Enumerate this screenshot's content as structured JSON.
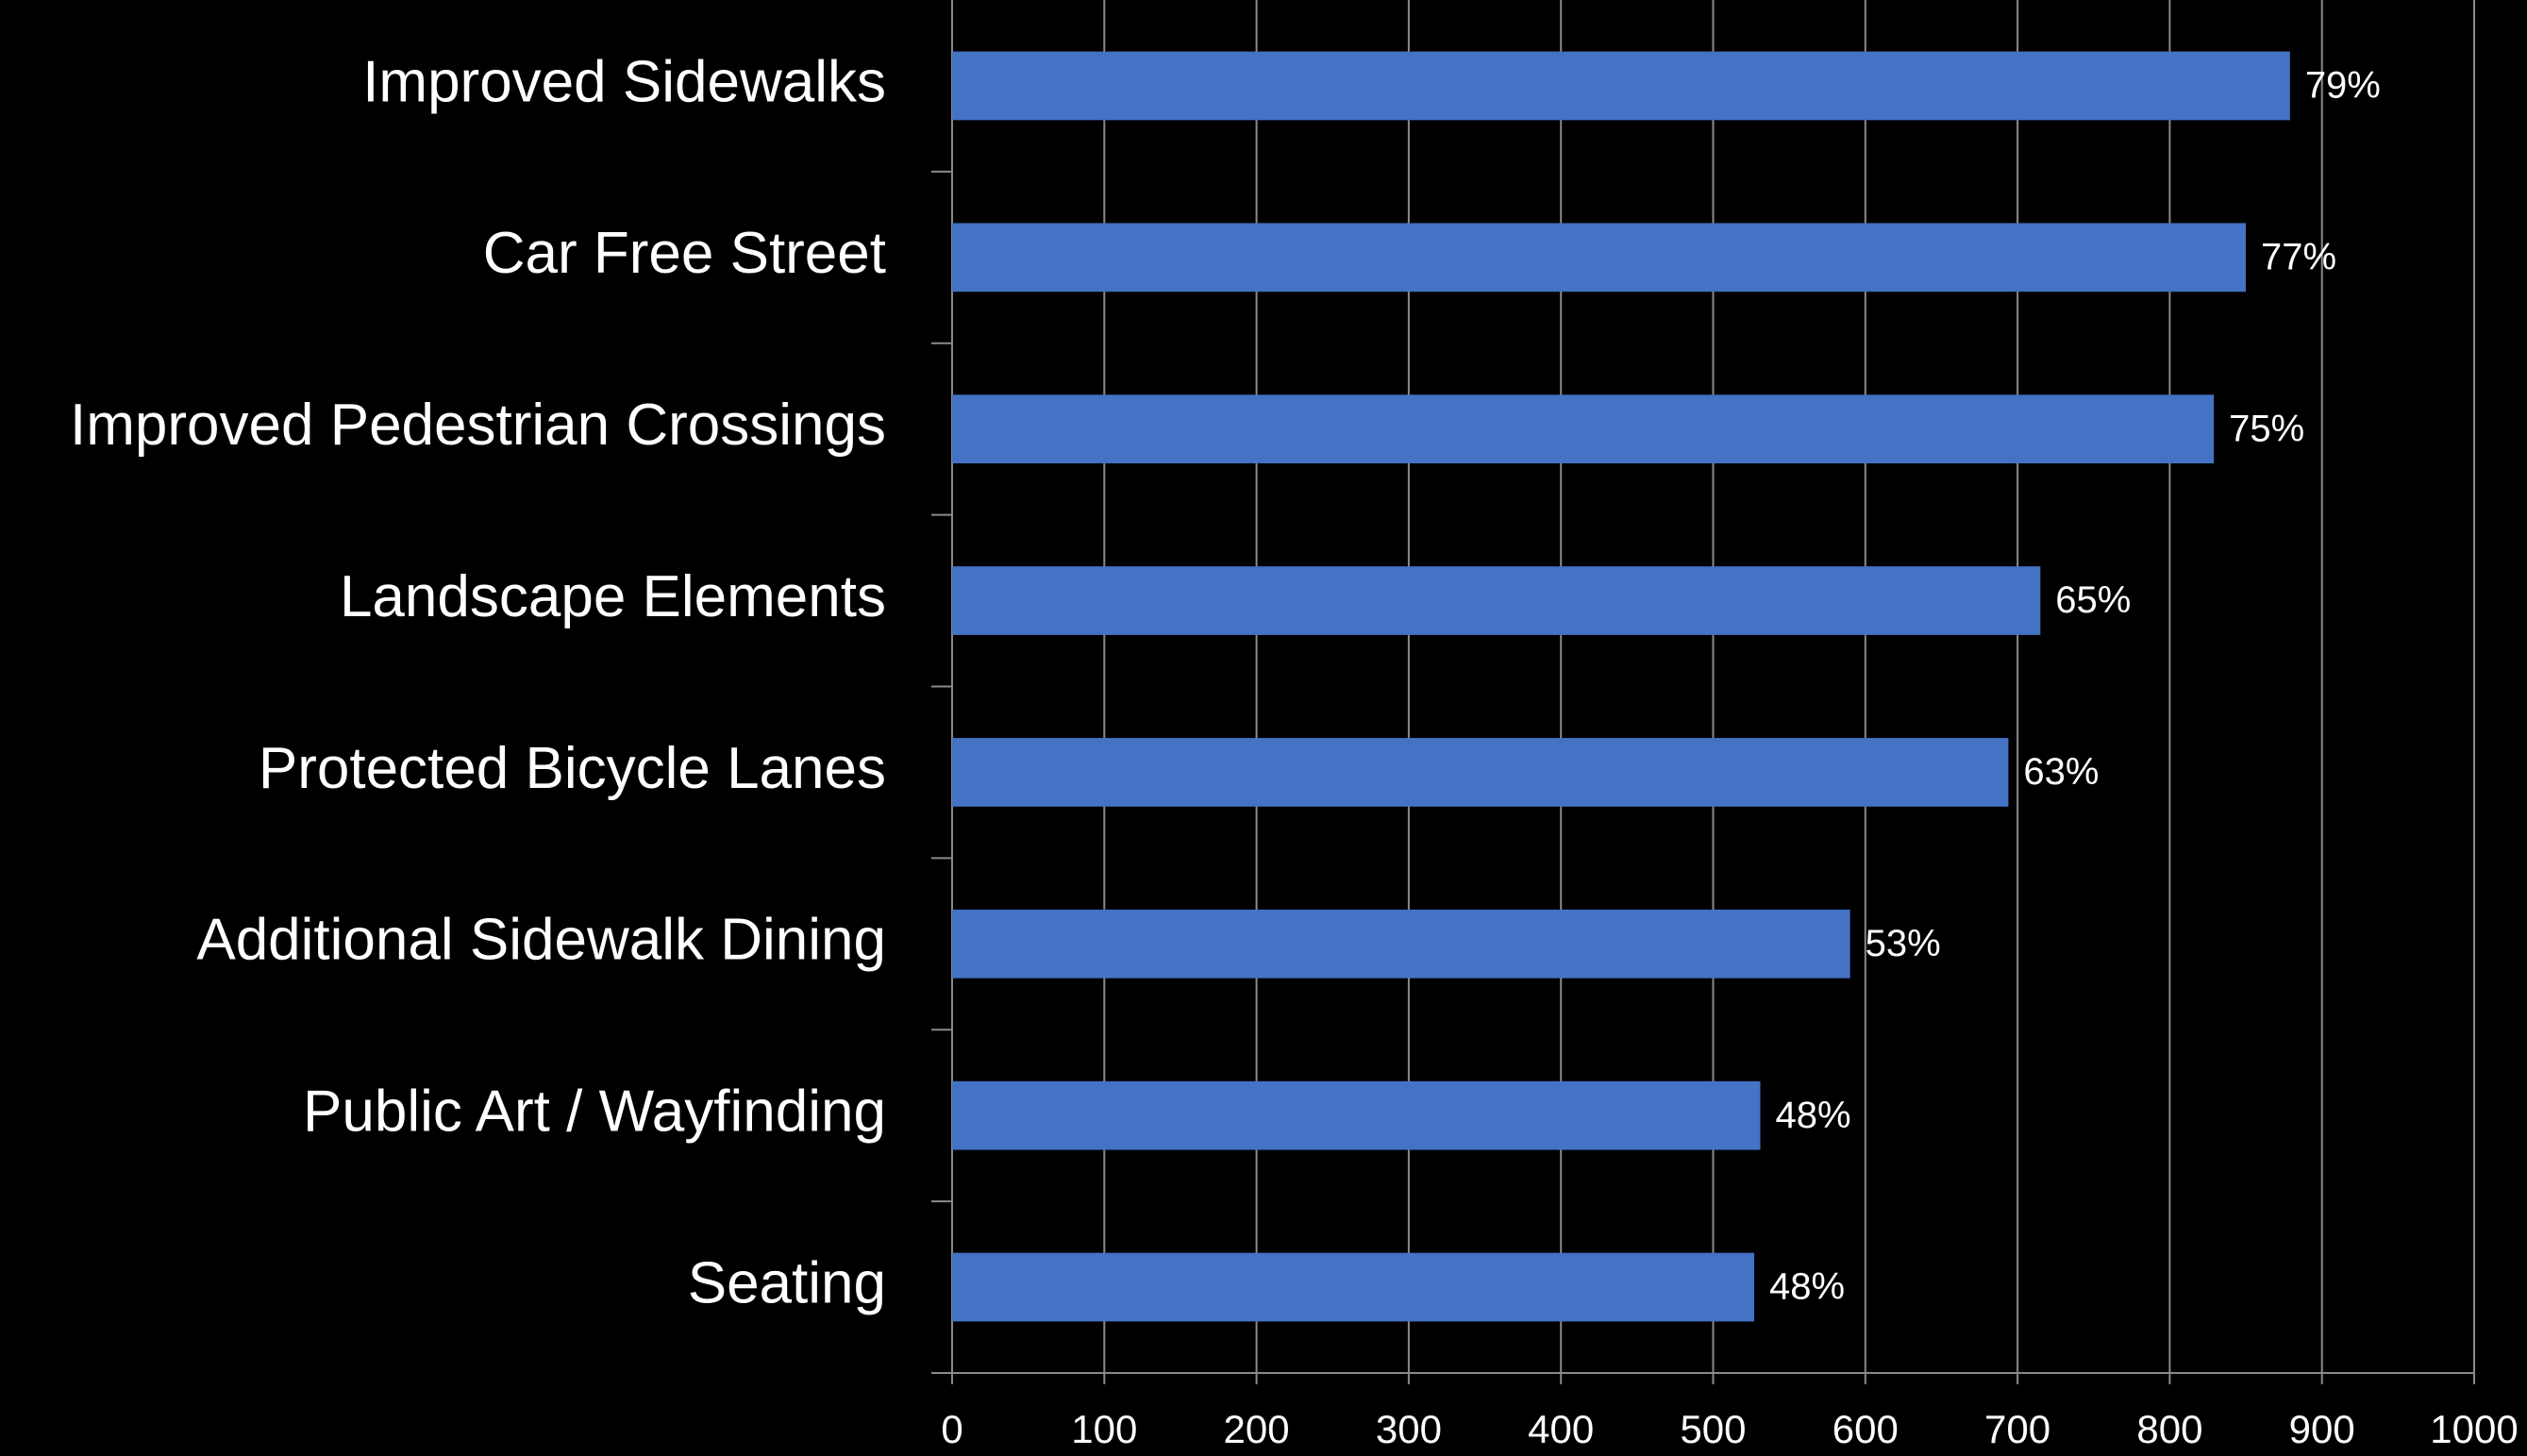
{
  "chart_data": {
    "type": "hbar",
    "categories": [
      "Improved Sidewalks",
      "Car Free Street",
      "Improved Pedestrian Crossings",
      "Landscape Elements",
      "Protected Bicycle Lanes",
      "Additional Sidewalk Dining",
      "Public Art / Wayfinding",
      "Seating"
    ],
    "values": [
      879,
      850,
      829,
      715,
      694,
      590,
      531,
      527
    ],
    "value_labels": [
      "79%",
      "77%",
      "75%",
      "65%",
      "63%",
      "53%",
      "48%",
      "48%"
    ],
    "color": "#4472c4",
    "xlim": [
      0,
      1000
    ],
    "xticks": [
      0,
      100,
      200,
      300,
      400,
      500,
      600,
      700,
      800,
      900,
      1000
    ],
    "grid": true
  }
}
